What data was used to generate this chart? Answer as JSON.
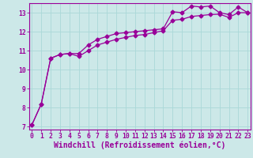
{
  "xlabel": "Windchill (Refroidissement éolien,°C)",
  "background_color": "#cce8e8",
  "line_color": "#990099",
  "marker": "D",
  "markersize": 2.5,
  "linewidth": 0.9,
  "x_min": 0,
  "x_max": 23,
  "y_min": 7,
  "y_max": 13,
  "series1_x": [
    0,
    1,
    2,
    3,
    4,
    5,
    6,
    7,
    8,
    9,
    10,
    11,
    12,
    13,
    14,
    15,
    16,
    17,
    18,
    19,
    20,
    21,
    22,
    23
  ],
  "series1_y": [
    7.1,
    8.2,
    10.6,
    10.8,
    10.85,
    10.85,
    11.3,
    11.6,
    11.75,
    11.9,
    11.95,
    12.0,
    12.05,
    12.1,
    12.15,
    13.05,
    13.0,
    13.35,
    13.3,
    13.35,
    13.0,
    12.9,
    13.3,
    13.0
  ],
  "series2_x": [
    0,
    1,
    2,
    3,
    4,
    5,
    6,
    7,
    8,
    9,
    10,
    11,
    12,
    13,
    14,
    15,
    16,
    17,
    18,
    19,
    20,
    21,
    22,
    23
  ],
  "series2_y": [
    7.1,
    8.2,
    10.6,
    10.8,
    10.85,
    10.7,
    11.0,
    11.3,
    11.45,
    11.6,
    11.7,
    11.8,
    11.85,
    11.95,
    12.05,
    12.6,
    12.65,
    12.8,
    12.85,
    12.9,
    12.92,
    12.75,
    13.0,
    13.0
  ],
  "grid_color": "#aad8d8",
  "tick_color": "#990099",
  "axis_label_color": "#990099",
  "tick_fontsize": 5.8,
  "xlabel_fontsize": 7.0,
  "ylim_top": 13.5,
  "ylim_bottom": 6.85
}
